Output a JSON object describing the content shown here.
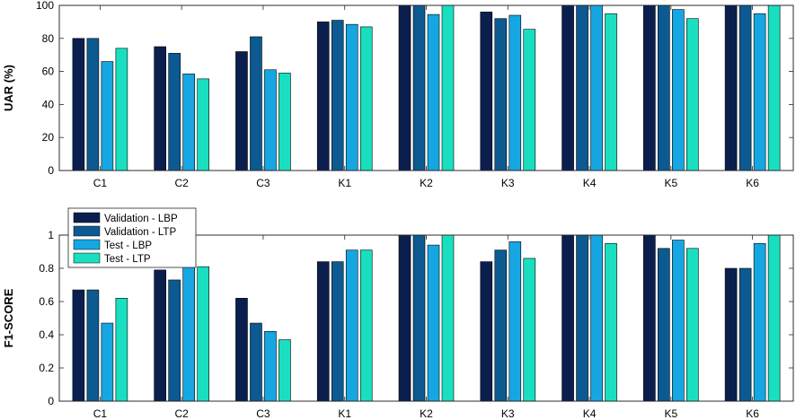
{
  "chart_data": [
    {
      "type": "bar",
      "ylabel": "UAR (%)",
      "xlabel": "",
      "ylim": [
        0,
        100
      ],
      "yticks": [
        0,
        20,
        40,
        60,
        80,
        100
      ],
      "ytick_labels": [
        "0",
        "20",
        "40",
        "60",
        "80",
        "100"
      ],
      "categories": [
        "C1",
        "C2",
        "C3",
        "K1",
        "K2",
        "K3",
        "K4",
        "K5",
        "K6"
      ],
      "series": [
        {
          "name": "Validation - LBP",
          "color": "#0b1f4f",
          "values": [
            80,
            75,
            72,
            90,
            100,
            96,
            100,
            100,
            100
          ]
        },
        {
          "name": "Validation - LTP",
          "color": "#0c5a91",
          "values": [
            80,
            71,
            81,
            91,
            100,
            92,
            100,
            100,
            100
          ]
        },
        {
          "name": "Test - LBP",
          "color": "#16a6e2",
          "values": [
            66,
            58.5,
            61,
            88.5,
            94.5,
            94,
            100,
            97.5,
            95
          ]
        },
        {
          "name": "Test - LTP",
          "color": "#19dfc0",
          "values": [
            74,
            55.5,
            59,
            87,
            100,
            85.5,
            95,
            92,
            100
          ]
        }
      ],
      "legend": false
    },
    {
      "type": "bar",
      "ylabel": "F1-SCORE",
      "xlabel": "",
      "ylim": [
        0,
        1
      ],
      "yticks": [
        0,
        0.2,
        0.4,
        0.6,
        0.8,
        1
      ],
      "ytick_labels": [
        "0",
        "0.2",
        "0.4",
        "0.6",
        "0.8",
        "1"
      ],
      "categories": [
        "C1",
        "C2",
        "C3",
        "K1",
        "K2",
        "K3",
        "K4",
        "K5",
        "K6"
      ],
      "series": [
        {
          "name": "Validation - LBP",
          "color": "#0b1f4f",
          "values": [
            0.67,
            0.79,
            0.62,
            0.84,
            1.0,
            0.84,
            1.0,
            1.0,
            0.8
          ]
        },
        {
          "name": "Validation - LTP",
          "color": "#0c5a91",
          "values": [
            0.67,
            0.73,
            0.47,
            0.84,
            1.0,
            0.91,
            1.0,
            0.92,
            0.8
          ]
        },
        {
          "name": "Test - LBP",
          "color": "#16a6e2",
          "values": [
            0.47,
            0.82,
            0.42,
            0.91,
            0.94,
            0.96,
            1.0,
            0.97,
            0.95
          ]
        },
        {
          "name": "Test - LTP",
          "color": "#19dfc0",
          "values": [
            0.62,
            0.81,
            0.37,
            0.91,
            1.0,
            0.86,
            0.95,
            0.92,
            1.0
          ]
        }
      ],
      "legend": true,
      "legend_position": "top-left"
    }
  ]
}
